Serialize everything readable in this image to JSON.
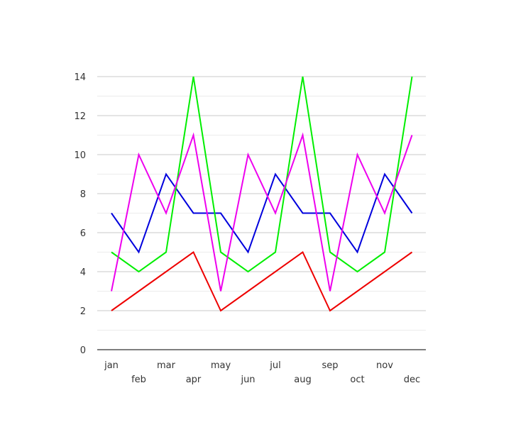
{
  "chart_data": {
    "type": "line",
    "title": "",
    "xlabel": "",
    "ylabel": "",
    "categories": [
      "jan",
      "feb",
      "mar",
      "apr",
      "may",
      "jun",
      "jul",
      "aug",
      "sep",
      "oct",
      "nov",
      "dec"
    ],
    "ylim": [
      0,
      14
    ],
    "yticks": [
      "0",
      "2",
      "4",
      "6",
      "8",
      "10",
      "12",
      "14"
    ],
    "grid": true,
    "legend": "none",
    "series": [
      {
        "color": "#0000dd",
        "values": [
          7,
          5,
          9,
          7,
          7,
          5,
          9,
          7,
          7,
          5,
          9,
          7
        ]
      },
      {
        "color": "#00ee00",
        "values": [
          5,
          4,
          5,
          14,
          5,
          4,
          5,
          14,
          5,
          4,
          5,
          14
        ]
      },
      {
        "color": "#ee00ee",
        "values": [
          3,
          10,
          7,
          11,
          3,
          10,
          7,
          11,
          3,
          10,
          7,
          11
        ]
      },
      {
        "color": "#ee0000",
        "values": [
          2,
          3,
          4,
          5,
          2,
          3,
          4,
          5,
          2,
          3,
          4,
          5
        ]
      }
    ]
  }
}
